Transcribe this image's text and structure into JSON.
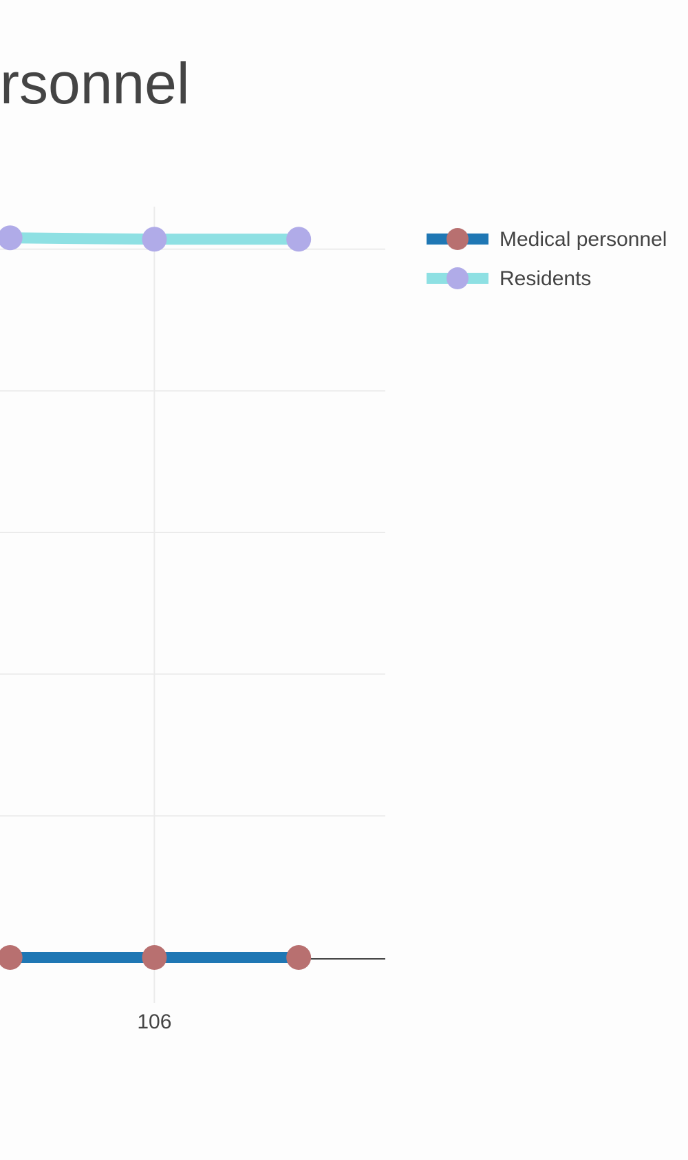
{
  "chart_data": {
    "type": "line",
    "title": "rsonnel",
    "x": [
      105,
      106,
      107
    ],
    "x_ticks": [
      106
    ],
    "x_tick_labels": [
      "106"
    ],
    "xlim": [
      104.93,
      107.6
    ],
    "ylim": [
      0,
      5.3
    ],
    "y_gridlines": [
      1,
      2,
      3,
      4,
      5
    ],
    "grid": true,
    "legend_position": "top-right",
    "series": [
      {
        "name": "Medical personnel",
        "values": [
          0,
          0,
          0
        ],
        "line_color": "#1f77b4",
        "marker_color": "#b87070"
      },
      {
        "name": "Residents",
        "values": [
          5.08,
          5.07,
          5.07
        ],
        "line_color": "#8ee0e3",
        "marker_color": "#b0abe8"
      }
    ],
    "legend": [
      {
        "label": "Medical personnel"
      },
      {
        "label": "Residents"
      }
    ]
  }
}
